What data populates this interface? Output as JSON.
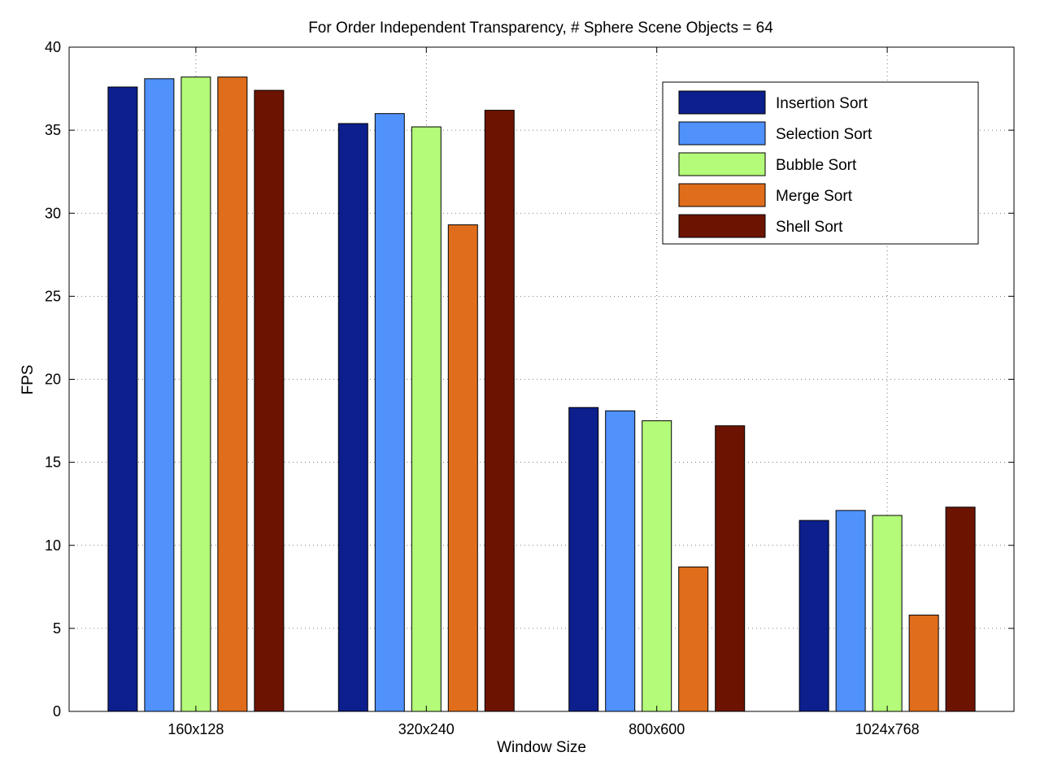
{
  "chart_data": {
    "type": "bar",
    "title": "For Order Independent Transparency, # Sphere Scene Objects = 64",
    "xlabel": "Window Size",
    "ylabel": "FPS",
    "categories": [
      "160x128",
      "320x240",
      "800x600",
      "1024x768"
    ],
    "ylim": [
      0,
      40
    ],
    "yticks": [
      0,
      5,
      10,
      15,
      20,
      25,
      30,
      35,
      40
    ],
    "grid": true,
    "legend_position": "top-right",
    "series": [
      {
        "name": "Insertion Sort",
        "color": "#0c1f8c",
        "values": [
          37.6,
          35.4,
          18.3,
          11.5
        ]
      },
      {
        "name": "Selection Sort",
        "color": "#5091fc",
        "values": [
          38.1,
          36.0,
          18.1,
          12.1
        ]
      },
      {
        "name": "Bubble Sort",
        "color": "#b3fb78",
        "values": [
          38.2,
          35.2,
          17.5,
          11.8
        ]
      },
      {
        "name": "Merge Sort",
        "color": "#e06d1b",
        "values": [
          38.2,
          29.3,
          8.7,
          5.8
        ]
      },
      {
        "name": "Shell Sort",
        "color": "#6c1401",
        "values": [
          37.4,
          36.2,
          17.2,
          12.3
        ]
      }
    ]
  }
}
